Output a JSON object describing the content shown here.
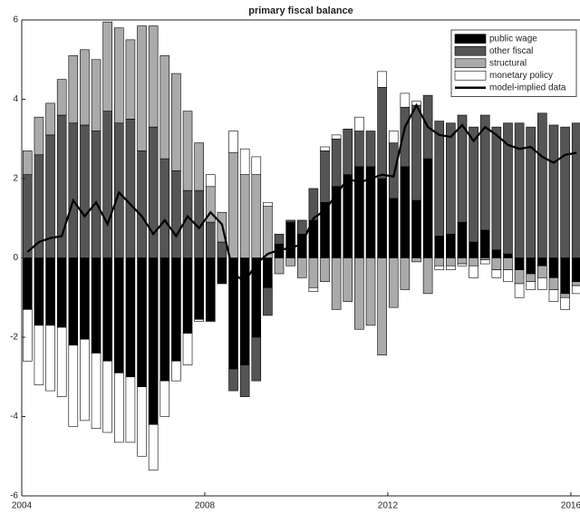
{
  "chart_data": {
    "type": "bar",
    "title": "primary fiscal balance",
    "x": [
      2004.125,
      2004.375,
      2004.625,
      2004.875,
      2005.125,
      2005.375,
      2005.625,
      2005.875,
      2006.125,
      2006.375,
      2006.625,
      2006.875,
      2007.125,
      2007.375,
      2007.625,
      2007.875,
      2008.125,
      2008.375,
      2008.625,
      2008.875,
      2009.125,
      2009.375,
      2009.625,
      2009.875,
      2010.125,
      2010.375,
      2010.625,
      2010.875,
      2011.125,
      2011.375,
      2011.625,
      2011.875,
      2012.125,
      2012.375,
      2012.625,
      2012.875,
      2013.125,
      2013.375,
      2013.625,
      2013.875,
      2014.125,
      2014.375,
      2014.625,
      2014.875,
      2015.125,
      2015.375,
      2015.625,
      2015.875,
      2016.125
    ],
    "series": [
      {
        "name": "public wage",
        "color": "#000000",
        "values": [
          -1.3,
          -1.7,
          -1.7,
          -1.75,
          -2.2,
          -2.05,
          -2.4,
          -2.6,
          -2.9,
          -3.0,
          -3.25,
          -4.2,
          -3.1,
          -2.6,
          -1.9,
          -1.55,
          -1.6,
          -0.65,
          -2.8,
          -2.7,
          -2.0,
          -0.75,
          0.35,
          0.9,
          0.6,
          0.95,
          1.4,
          1.8,
          2.1,
          2.3,
          2.3,
          2.0,
          1.5,
          2.3,
          1.45,
          2.5,
          0.55,
          0.6,
          0.9,
          0.4,
          0.7,
          0.2,
          0.1,
          -0.3,
          -0.4,
          -0.2,
          -0.5,
          -0.9,
          -0.6
        ]
      },
      {
        "name": "other fiscal",
        "color": "#555555",
        "values": [
          2.1,
          2.6,
          3.1,
          3.6,
          3.4,
          3.35,
          3.2,
          3.7,
          3.4,
          3.5,
          2.7,
          3.3,
          2.5,
          2.2,
          1.7,
          1.7,
          0.9,
          0.4,
          -0.55,
          -0.8,
          -1.1,
          -0.7,
          0.25,
          0.05,
          0.35,
          0.8,
          1.3,
          1.2,
          1.15,
          0.9,
          0.9,
          2.3,
          1.4,
          1.5,
          2.4,
          1.6,
          2.9,
          2.8,
          2.7,
          2.9,
          2.9,
          3.1,
          3.3,
          3.4,
          3.3,
          3.65,
          3.35,
          3.3,
          3.4
        ]
      },
      {
        "name": "structural",
        "color": "#aaaaaa",
        "values": [
          0.6,
          0.95,
          0.8,
          0.9,
          1.7,
          1.9,
          1.8,
          2.25,
          2.4,
          2.0,
          3.15,
          2.55,
          2.6,
          2.45,
          2.0,
          1.2,
          0.9,
          0.75,
          2.65,
          2.1,
          2.1,
          1.3,
          -0.4,
          -0.2,
          -0.5,
          -0.75,
          -0.6,
          -1.3,
          -1.1,
          -1.8,
          -1.7,
          -2.45,
          -1.25,
          -0.8,
          -0.1,
          -0.9,
          -0.2,
          -0.2,
          -0.15,
          -0.2,
          -0.05,
          -0.3,
          -0.3,
          -0.35,
          -0.2,
          -0.3,
          -0.3,
          -0.1,
          -0.1
        ]
      },
      {
        "name": "monetary policy",
        "color": "#ffffff",
        "values": [
          -1.3,
          -1.5,
          -1.65,
          -1.75,
          -2.05,
          -2.05,
          -1.9,
          -1.8,
          -1.75,
          -1.65,
          -1.75,
          -1.15,
          -0.9,
          -0.5,
          -0.8,
          -0.05,
          0.3,
          0,
          0.55,
          0.65,
          0.45,
          0.1,
          0,
          0,
          0,
          -0.1,
          0.1,
          0.1,
          0,
          0.35,
          0,
          0.4,
          0.3,
          0.35,
          0.1,
          0,
          -0.1,
          -0.1,
          -0.05,
          -0.3,
          -0.1,
          -0.2,
          -0.3,
          -0.35,
          -0.2,
          -0.3,
          -0.3,
          -0.3,
          -0.2
        ]
      },
      {
        "name": "model-implied data",
        "color": "#000000",
        "type": "line",
        "values": [
          0.15,
          0.4,
          0.5,
          0.55,
          1.45,
          1.05,
          1.4,
          0.85,
          1.65,
          1.35,
          1.05,
          0.6,
          0.95,
          0.55,
          1.05,
          0.75,
          1.15,
          0.85,
          -0.4,
          -0.6,
          -0.15,
          0.1,
          0.2,
          0.25,
          0.35,
          1.0,
          1.2,
          1.6,
          2.0,
          1.9,
          2.0,
          2.1,
          2.05,
          3.3,
          3.85,
          3.3,
          3.1,
          3.05,
          3.35,
          2.95,
          3.3,
          3.1,
          2.85,
          2.75,
          2.8,
          2.55,
          2.4,
          2.6,
          2.65
        ]
      }
    ],
    "xlim": [
      2004,
      2016.2
    ],
    "xticks": [
      2004,
      2008,
      2012,
      2016
    ],
    "ylim": [
      -6,
      6
    ],
    "yticks": [
      -6,
      -4,
      -2,
      0,
      2,
      4,
      6
    ],
    "stacked": true,
    "legend": "upper right"
  }
}
